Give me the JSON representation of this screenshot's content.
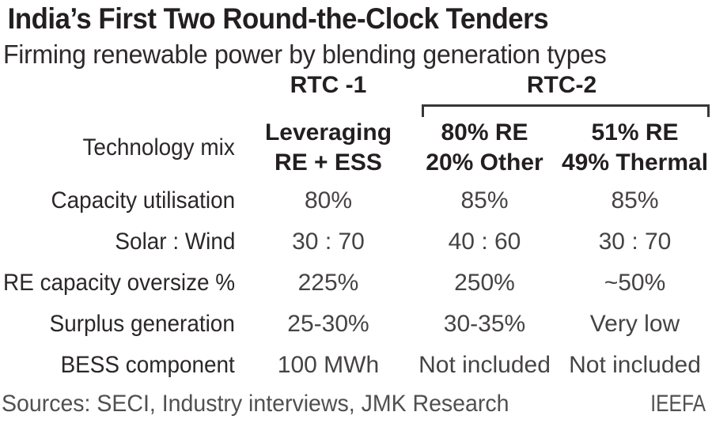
{
  "header": {
    "title": "India’s First Two Round-the-Clock Tenders",
    "subtitle": "Firming renewable power by blending generation types"
  },
  "chart_data": {
    "type": "table",
    "title": "India’s First Two Round-the-Clock Tenders",
    "subtitle": "Firming renewable power by blending generation types",
    "column_groups": [
      {
        "label": "RTC -1",
        "span": 1
      },
      {
        "label": "RTC-2",
        "span": 2
      }
    ],
    "tech_mix_row": {
      "label": "Technology mix",
      "rtc1_lines": [
        "Leveraging",
        "RE + ESS"
      ],
      "rtc2a_lines": [
        "80% RE",
        "20% Other"
      ],
      "rtc2b_lines": [
        "51% RE",
        "49% Thermal"
      ]
    },
    "rows": [
      {
        "label": "Capacity utilisation",
        "rtc1": "80%",
        "rtc2a": "85%",
        "rtc2b": "85%"
      },
      {
        "label": "Solar : Wind",
        "rtc1": "30 : 70",
        "rtc2a": "40 : 60",
        "rtc2b": "30 : 70"
      },
      {
        "label": "RE capacity oversize %",
        "rtc1": "225%",
        "rtc2a": "250%",
        "rtc2b": "~50%"
      },
      {
        "label": "Surplus generation",
        "rtc1": "25-30%",
        "rtc2a": "30-35%",
        "rtc2b": "Very low"
      },
      {
        "label": "BESS component",
        "rtc1": "100 MWh",
        "rtc2a": "Not included",
        "rtc2b": "Not included"
      }
    ]
  },
  "footer": {
    "sources": "Sources: SECI, Industry interviews, JMK Research",
    "brand": "IEEFA"
  },
  "colors": {
    "ink": "#231f20",
    "ink_val": "#464344",
    "ink_src": "#514f50",
    "bracket": "#3a3637"
  }
}
